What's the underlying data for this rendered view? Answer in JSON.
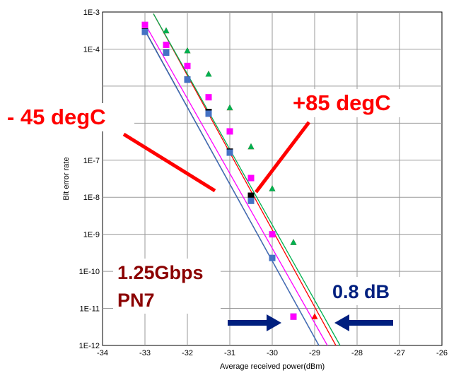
{
  "chart_data": {
    "type": "scatter",
    "xlabel": "Average received power(dBm)",
    "ylabel": "Bit error rate",
    "xlim": [
      -34,
      -26
    ],
    "ylim_log10": [
      -12,
      -3
    ],
    "x_ticks": [
      "-34",
      "-33",
      "-32",
      "-31",
      "-30",
      "-29",
      "-28",
      "-27",
      "-26"
    ],
    "y_ticks": [
      "1E-12",
      "1E-11",
      "1E-10",
      "1E-9",
      "1E-8",
      "1E-7",
      "1E-6",
      "1E-4",
      "1E-3"
    ],
    "y_tick_exponents": [
      -12,
      -11,
      -10,
      -9,
      -8,
      -7,
      -6,
      -4,
      -3
    ],
    "grid": true,
    "series": [
      {
        "color": "#000000",
        "marker": "square",
        "points": [
          [
            -33,
            0.0003
          ],
          [
            -32.5,
            8e-05
          ],
          [
            -32,
            1.5e-05
          ],
          [
            -31.5,
            2e-06
          ],
          [
            -31,
            1.7e-07
          ],
          [
            -30.5,
            1.1e-08
          ]
        ],
        "fit": [
          [
            -33,
            0.00032
          ],
          [
            -28.9,
            1e-12
          ]
        ]
      },
      {
        "color": "#4472c4",
        "marker": "square",
        "points": [
          [
            -33,
            0.00029
          ],
          [
            -32.5,
            8e-05
          ],
          [
            -32,
            1.5e-05
          ],
          [
            -31.5,
            1.8e-06
          ],
          [
            -31,
            1.6e-07
          ],
          [
            -30.5,
            8e-09
          ],
          [
            -30,
            2.3e-10
          ],
          [
            -29.5,
            6e-12
          ]
        ],
        "fit": [
          [
            -33,
            0.00031
          ],
          [
            -28.9,
            1e-12
          ]
        ]
      },
      {
        "color": "#ff00ff",
        "marker": "square",
        "points": [
          [
            -33,
            0.00045
          ],
          [
            -32.5,
            0.00013
          ],
          [
            -32,
            3.5e-05
          ],
          [
            -31.5,
            5e-06
          ],
          [
            -31,
            6e-07
          ],
          [
            -30.5,
            3.3e-08
          ],
          [
            -30,
            1e-09
          ],
          [
            -29.5,
            6e-12
          ]
        ],
        "fit": [
          [
            -33,
            0.00048
          ],
          [
            -28.7,
            1e-12
          ]
        ]
      },
      {
        "color": "#ff0000",
        "marker": "triangle",
        "points": [
          [
            -32.5,
            0.00031
          ],
          [
            -32,
            9e-05
          ],
          [
            -31.5,
            2.1e-05
          ],
          [
            -31,
            2.6e-06
          ],
          [
            -30.5,
            2.3e-07
          ],
          [
            -30,
            1.7e-08
          ],
          [
            -29.5,
            6e-10
          ],
          [
            -29,
            6e-12
          ]
        ],
        "fit": [
          [
            -32.8,
            0.0009
          ],
          [
            -28.5,
            1e-12
          ]
        ]
      },
      {
        "color": "#00b050",
        "marker": "triangle",
        "points": [
          [
            -32.5,
            0.00031
          ],
          [
            -32,
            9e-05
          ],
          [
            -31.5,
            2.1e-05
          ],
          [
            -31,
            2.6e-06
          ],
          [
            -30.5,
            2.3e-07
          ],
          [
            -30,
            1.7e-08
          ],
          [
            -29.5,
            6e-10
          ]
        ],
        "fit": [
          [
            -32.8,
            0.0009
          ],
          [
            -28.4,
            1e-12
          ]
        ]
      }
    ],
    "annotations": {
      "cold": "- 45 degC",
      "hot": "+85 degC",
      "rate": "1.25Gbps",
      "pattern": "PN7",
      "delta": "0.8 dB"
    }
  }
}
